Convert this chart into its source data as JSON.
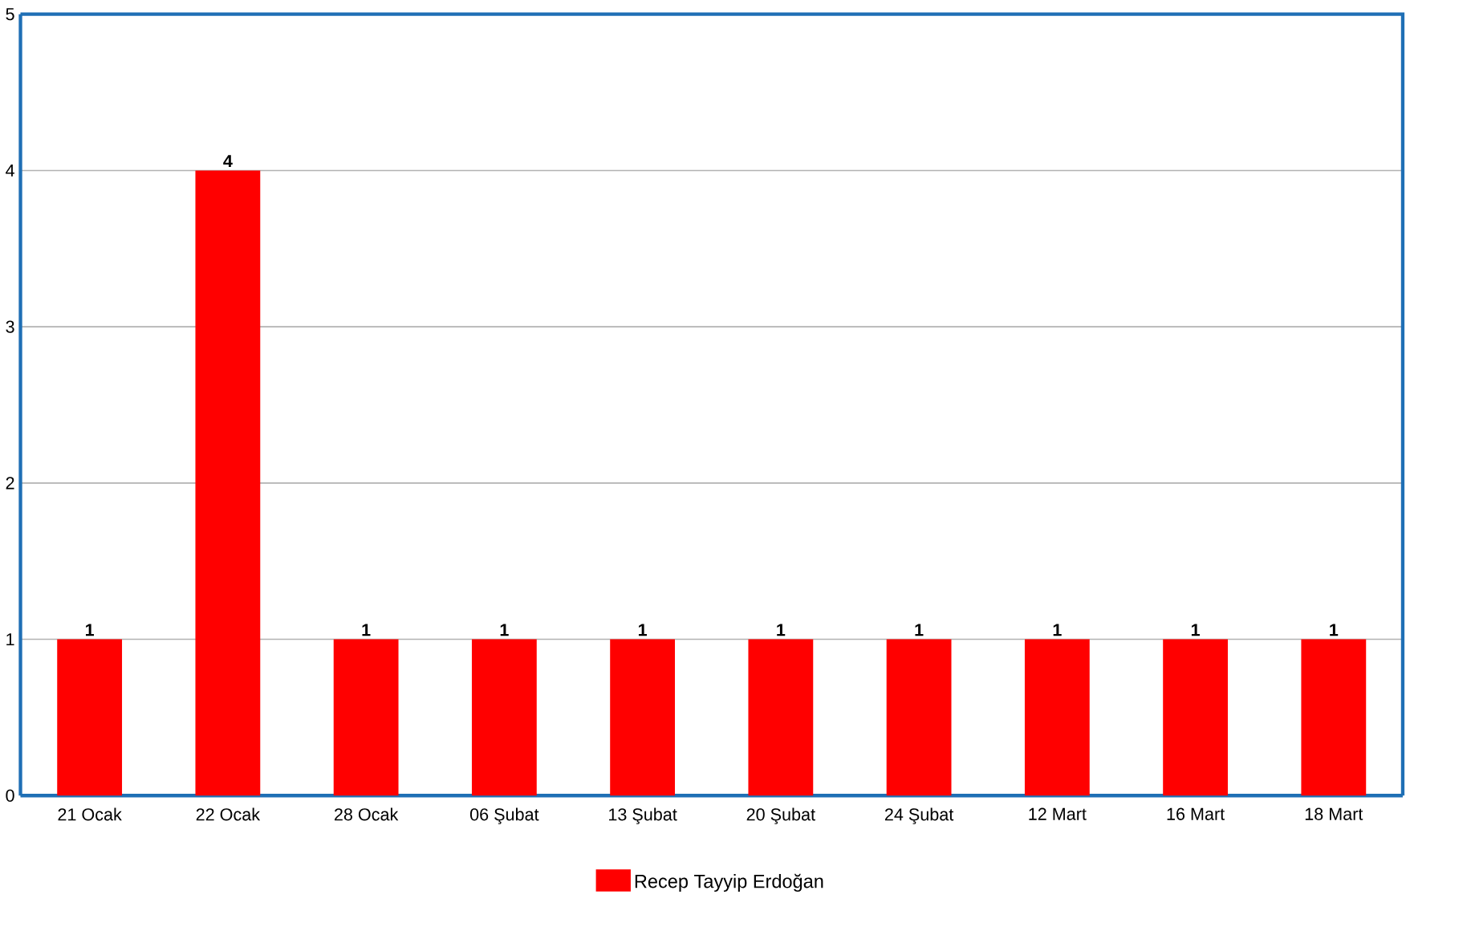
{
  "chart_data": {
    "type": "bar",
    "categories": [
      "21 Ocak",
      "22 Ocak",
      "28 Ocak",
      "06 Şubat",
      "13 Şubat",
      "20 Şubat",
      "24 Şubat",
      "12 Mart",
      "16 Mart",
      "18 Mart"
    ],
    "series": [
      {
        "name": "Recep Tayyip Erdoğan",
        "color": "#ff0000",
        "values": [
          1,
          4,
          1,
          1,
          1,
          1,
          1,
          1,
          1,
          1
        ]
      }
    ],
    "ylim": [
      0,
      5
    ],
    "yticks": [
      0,
      1,
      2,
      3,
      4,
      5
    ],
    "grid": "y",
    "legend": "bottom",
    "data_labels": true
  }
}
